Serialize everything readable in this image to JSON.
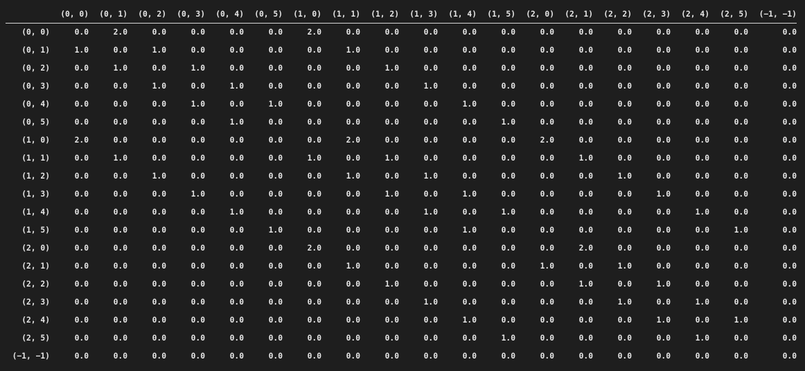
{
  "table": {
    "columns": [
      "(0, 0)",
      "(0, 1)",
      "(0, 2)",
      "(0, 3)",
      "(0, 4)",
      "(0, 5)",
      "(1, 0)",
      "(1, 1)",
      "(1, 2)",
      "(1, 3)",
      "(1, 4)",
      "(1, 5)",
      "(2, 0)",
      "(2, 1)",
      "(2, 2)",
      "(2, 3)",
      "(2, 4)",
      "(2, 5)",
      "(−1, −1)"
    ],
    "rows": [
      {
        "index": "(0, 0)",
        "values": [
          "0.0",
          "2.0",
          "0.0",
          "0.0",
          "0.0",
          "0.0",
          "2.0",
          "0.0",
          "0.0",
          "0.0",
          "0.0",
          "0.0",
          "0.0",
          "0.0",
          "0.0",
          "0.0",
          "0.0",
          "0.0",
          "0.0"
        ]
      },
      {
        "index": "(0, 1)",
        "values": [
          "1.0",
          "0.0",
          "1.0",
          "0.0",
          "0.0",
          "0.0",
          "0.0",
          "1.0",
          "0.0",
          "0.0",
          "0.0",
          "0.0",
          "0.0",
          "0.0",
          "0.0",
          "0.0",
          "0.0",
          "0.0",
          "0.0"
        ]
      },
      {
        "index": "(0, 2)",
        "values": [
          "0.0",
          "1.0",
          "0.0",
          "1.0",
          "0.0",
          "0.0",
          "0.0",
          "0.0",
          "1.0",
          "0.0",
          "0.0",
          "0.0",
          "0.0",
          "0.0",
          "0.0",
          "0.0",
          "0.0",
          "0.0",
          "0.0"
        ]
      },
      {
        "index": "(0, 3)",
        "values": [
          "0.0",
          "0.0",
          "1.0",
          "0.0",
          "1.0",
          "0.0",
          "0.0",
          "0.0",
          "0.0",
          "1.0",
          "0.0",
          "0.0",
          "0.0",
          "0.0",
          "0.0",
          "0.0",
          "0.0",
          "0.0",
          "0.0"
        ]
      },
      {
        "index": "(0, 4)",
        "values": [
          "0.0",
          "0.0",
          "0.0",
          "1.0",
          "0.0",
          "1.0",
          "0.0",
          "0.0",
          "0.0",
          "0.0",
          "1.0",
          "0.0",
          "0.0",
          "0.0",
          "0.0",
          "0.0",
          "0.0",
          "0.0",
          "0.0"
        ]
      },
      {
        "index": "(0, 5)",
        "values": [
          "0.0",
          "0.0",
          "0.0",
          "0.0",
          "1.0",
          "0.0",
          "0.0",
          "0.0",
          "0.0",
          "0.0",
          "0.0",
          "1.0",
          "0.0",
          "0.0",
          "0.0",
          "0.0",
          "0.0",
          "0.0",
          "0.0"
        ]
      },
      {
        "index": "(1, 0)",
        "values": [
          "2.0",
          "0.0",
          "0.0",
          "0.0",
          "0.0",
          "0.0",
          "0.0",
          "2.0",
          "0.0",
          "0.0",
          "0.0",
          "0.0",
          "2.0",
          "0.0",
          "0.0",
          "0.0",
          "0.0",
          "0.0",
          "0.0"
        ]
      },
      {
        "index": "(1, 1)",
        "values": [
          "0.0",
          "1.0",
          "0.0",
          "0.0",
          "0.0",
          "0.0",
          "1.0",
          "0.0",
          "1.0",
          "0.0",
          "0.0",
          "0.0",
          "0.0",
          "1.0",
          "0.0",
          "0.0",
          "0.0",
          "0.0",
          "0.0"
        ]
      },
      {
        "index": "(1, 2)",
        "values": [
          "0.0",
          "0.0",
          "1.0",
          "0.0",
          "0.0",
          "0.0",
          "0.0",
          "1.0",
          "0.0",
          "1.0",
          "0.0",
          "0.0",
          "0.0",
          "0.0",
          "1.0",
          "0.0",
          "0.0",
          "0.0",
          "0.0"
        ]
      },
      {
        "index": "(1, 3)",
        "values": [
          "0.0",
          "0.0",
          "0.0",
          "1.0",
          "0.0",
          "0.0",
          "0.0",
          "0.0",
          "1.0",
          "0.0",
          "1.0",
          "0.0",
          "0.0",
          "0.0",
          "0.0",
          "1.0",
          "0.0",
          "0.0",
          "0.0"
        ]
      },
      {
        "index": "(1, 4)",
        "values": [
          "0.0",
          "0.0",
          "0.0",
          "0.0",
          "1.0",
          "0.0",
          "0.0",
          "0.0",
          "0.0",
          "1.0",
          "0.0",
          "1.0",
          "0.0",
          "0.0",
          "0.0",
          "0.0",
          "1.0",
          "0.0",
          "0.0"
        ]
      },
      {
        "index": "(1, 5)",
        "values": [
          "0.0",
          "0.0",
          "0.0",
          "0.0",
          "0.0",
          "1.0",
          "0.0",
          "0.0",
          "0.0",
          "0.0",
          "1.0",
          "0.0",
          "0.0",
          "0.0",
          "0.0",
          "0.0",
          "0.0",
          "1.0",
          "0.0"
        ]
      },
      {
        "index": "(2, 0)",
        "values": [
          "0.0",
          "0.0",
          "0.0",
          "0.0",
          "0.0",
          "0.0",
          "2.0",
          "0.0",
          "0.0",
          "0.0",
          "0.0",
          "0.0",
          "0.0",
          "2.0",
          "0.0",
          "0.0",
          "0.0",
          "0.0",
          "0.0"
        ]
      },
      {
        "index": "(2, 1)",
        "values": [
          "0.0",
          "0.0",
          "0.0",
          "0.0",
          "0.0",
          "0.0",
          "0.0",
          "1.0",
          "0.0",
          "0.0",
          "0.0",
          "0.0",
          "1.0",
          "0.0",
          "1.0",
          "0.0",
          "0.0",
          "0.0",
          "0.0"
        ]
      },
      {
        "index": "(2, 2)",
        "values": [
          "0.0",
          "0.0",
          "0.0",
          "0.0",
          "0.0",
          "0.0",
          "0.0",
          "0.0",
          "1.0",
          "0.0",
          "0.0",
          "0.0",
          "0.0",
          "1.0",
          "0.0",
          "1.0",
          "0.0",
          "0.0",
          "0.0"
        ]
      },
      {
        "index": "(2, 3)",
        "values": [
          "0.0",
          "0.0",
          "0.0",
          "0.0",
          "0.0",
          "0.0",
          "0.0",
          "0.0",
          "0.0",
          "1.0",
          "0.0",
          "0.0",
          "0.0",
          "0.0",
          "1.0",
          "0.0",
          "1.0",
          "0.0",
          "0.0"
        ]
      },
      {
        "index": "(2, 4)",
        "values": [
          "0.0",
          "0.0",
          "0.0",
          "0.0",
          "0.0",
          "0.0",
          "0.0",
          "0.0",
          "0.0",
          "0.0",
          "1.0",
          "0.0",
          "0.0",
          "0.0",
          "0.0",
          "1.0",
          "0.0",
          "1.0",
          "0.0"
        ]
      },
      {
        "index": "(2, 5)",
        "values": [
          "0.0",
          "0.0",
          "0.0",
          "0.0",
          "0.0",
          "0.0",
          "0.0",
          "0.0",
          "0.0",
          "0.0",
          "0.0",
          "1.0",
          "0.0",
          "0.0",
          "0.0",
          "0.0",
          "1.0",
          "0.0",
          "0.0"
        ]
      },
      {
        "index": "(−1, −1)",
        "values": [
          "0.0",
          "0.0",
          "0.0",
          "0.0",
          "0.0",
          "0.0",
          "0.0",
          "0.0",
          "0.0",
          "0.0",
          "0.0",
          "0.0",
          "0.0",
          "0.0",
          "0.0",
          "0.0",
          "0.0",
          "0.0",
          "0.0"
        ]
      }
    ]
  },
  "colors": {
    "background": "#1e1e1e",
    "text": "#e6e6e6",
    "header_rule": "#d8d8d8"
  }
}
